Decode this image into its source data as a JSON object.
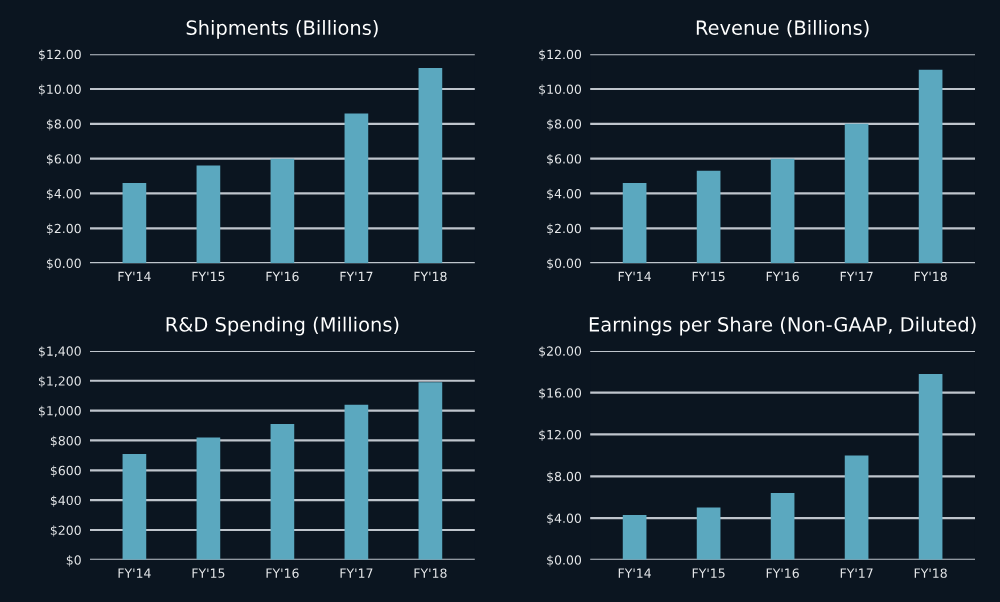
{
  "chart_data": [
    {
      "type": "bar",
      "title": "Shipments (Billions)",
      "categories": [
        "FY'14",
        "FY'15",
        "FY'16",
        "FY'17",
        "FY'18"
      ],
      "values": [
        4.6,
        5.6,
        6.0,
        8.6,
        11.2
      ],
      "color": "#5ba8bf",
      "ylim": [
        0,
        12
      ],
      "yticks": [
        {
          "value": 0,
          "label": "$0.00"
        },
        {
          "value": 2,
          "label": "$2.00"
        },
        {
          "value": 4,
          "label": "$4.00"
        },
        {
          "value": 6,
          "label": "$6.00"
        },
        {
          "value": 8,
          "label": "$8.00"
        },
        {
          "value": 10,
          "label": "$10.00"
        },
        {
          "value": 12,
          "label": "$12.00"
        }
      ],
      "grid": "y"
    },
    {
      "type": "bar",
      "title": "Revenue (Billions)",
      "categories": [
        "FY'14",
        "FY'15",
        "FY'16",
        "FY'17",
        "FY'18"
      ],
      "values": [
        4.6,
        5.3,
        6.0,
        8.0,
        11.1
      ],
      "color": "#5ba8bf",
      "ylim": [
        0,
        12
      ],
      "yticks": [
        {
          "value": 0,
          "label": "$0.00"
        },
        {
          "value": 2,
          "label": "$2.00"
        },
        {
          "value": 4,
          "label": "$4.00"
        },
        {
          "value": 6,
          "label": "$6.00"
        },
        {
          "value": 8,
          "label": "$8.00"
        },
        {
          "value": 10,
          "label": "$10.00"
        },
        {
          "value": 12,
          "label": "$12.00"
        }
      ],
      "grid": "y"
    },
    {
      "type": "bar",
      "title": "R&D Spending (Millions)",
      "categories": [
        "FY'14",
        "FY'15",
        "FY'16",
        "FY'17",
        "FY'18"
      ],
      "values": [
        710,
        820,
        910,
        1040,
        1190
      ],
      "color": "#5ba8bf",
      "ylim": [
        0,
        1400
      ],
      "yticks": [
        {
          "value": 0,
          "label": "$0"
        },
        {
          "value": 200,
          "label": "$200"
        },
        {
          "value": 400,
          "label": "$400"
        },
        {
          "value": 600,
          "label": "$600"
        },
        {
          "value": 800,
          "label": "$800"
        },
        {
          "value": 1000,
          "label": "$1,000"
        },
        {
          "value": 1200,
          "label": "$1,200"
        },
        {
          "value": 1400,
          "label": "$1,400"
        }
      ],
      "grid": "y"
    },
    {
      "type": "bar",
      "title": "Earnings per Share (Non-GAAP, Diluted)",
      "categories": [
        "FY'14",
        "FY'15",
        "FY'16",
        "FY'17",
        "FY'18"
      ],
      "values": [
        4.3,
        5.0,
        6.4,
        10.0,
        17.8
      ],
      "color": "#5ba8bf",
      "ylim": [
        0,
        20
      ],
      "yticks": [
        {
          "value": 0,
          "label": "$0.00"
        },
        {
          "value": 4,
          "label": "$4.00"
        },
        {
          "value": 8,
          "label": "$8.00"
        },
        {
          "value": 12,
          "label": "$12.00"
        },
        {
          "value": 16,
          "label": "$16.00"
        },
        {
          "value": 20,
          "label": "$20.00"
        }
      ],
      "grid": "y"
    }
  ]
}
